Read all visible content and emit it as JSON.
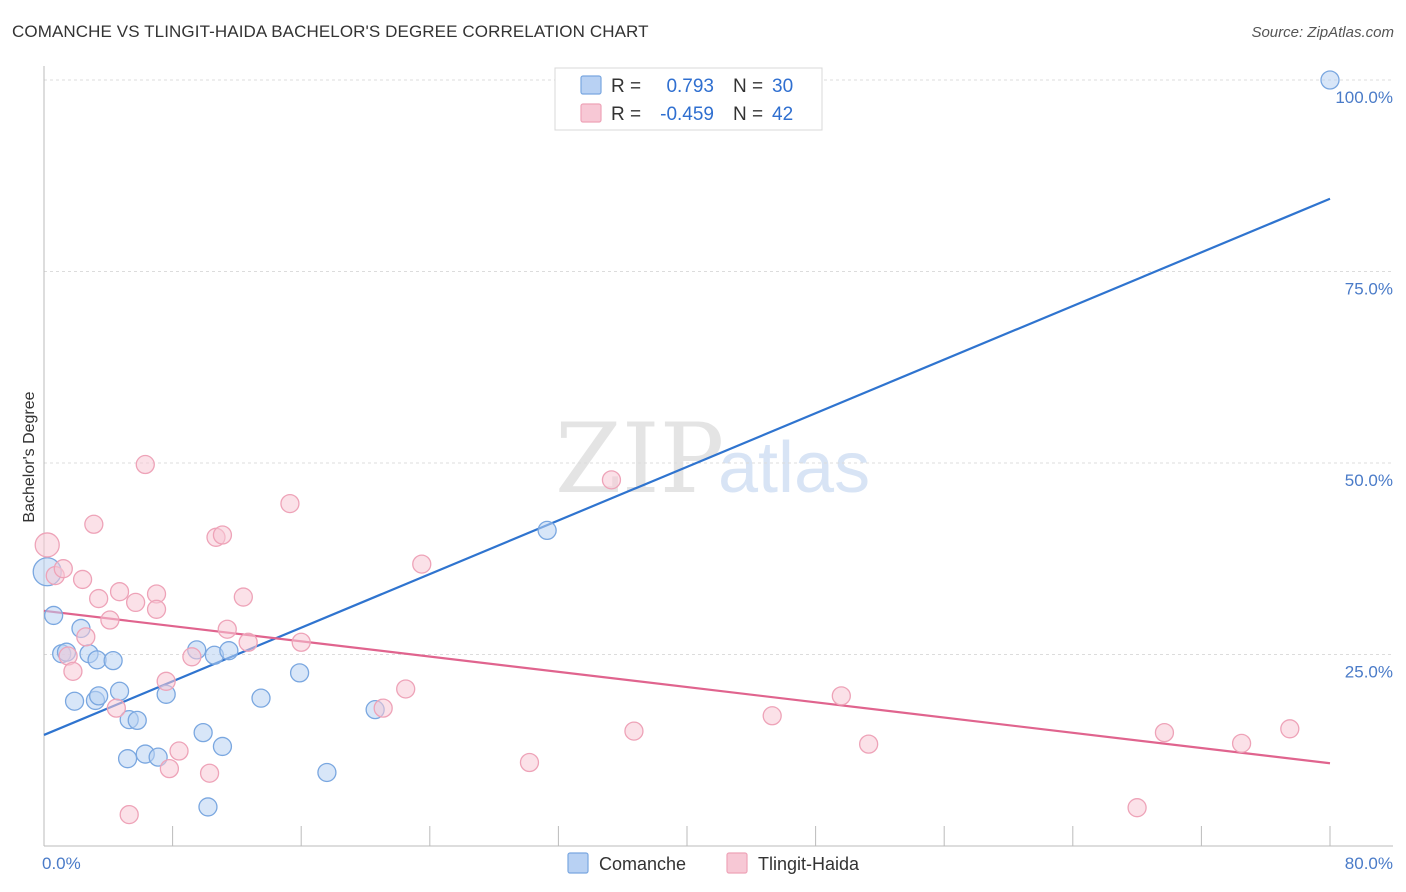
{
  "chart_data": {
    "type": "scatter",
    "title": "COMANCHE VS TLINGIT-HAIDA BACHELOR'S DEGREE CORRELATION CHART",
    "source": "Source: ZipAtlas.com",
    "ylabel": "Bachelor's Degree",
    "xlim": [
      0,
      80
    ],
    "ylim": [
      0,
      100
    ],
    "x_tick_labels": {
      "min": "0.0%",
      "max": "80.0%"
    },
    "y_ticks": [
      {
        "value": 25,
        "label": "25.0%"
      },
      {
        "value": 50,
        "label": "50.0%"
      },
      {
        "value": 75,
        "label": "75.0%"
      },
      {
        "value": 100,
        "label": "100.0%"
      }
    ],
    "watermark": {
      "zip": "ZIP",
      "atlas": "atlas"
    },
    "legend": {
      "r_label": "R =",
      "n_label": "N =",
      "rows": [
        {
          "r": "0.793",
          "n": "30"
        },
        {
          "r": "-0.459",
          "n": "42"
        }
      ]
    },
    "series": [
      {
        "name": "Comanche",
        "color": "#7aa7e0",
        "fill": "#b8d1f3",
        "line_color": "#2f74cf",
        "trend": {
          "x0": 0,
          "y0": 14.5,
          "x1": 80,
          "y1": 84.5
        },
        "points": [
          [
            0.2,
            35.8,
            14
          ],
          [
            0.6,
            30.1,
            9
          ],
          [
            1.1,
            25.1,
            9
          ],
          [
            1.4,
            25.3,
            9
          ],
          [
            2.3,
            28.4,
            9
          ],
          [
            2.8,
            25.1,
            9
          ],
          [
            3.3,
            24.3,
            9
          ],
          [
            4.3,
            24.2,
            9
          ],
          [
            1.9,
            18.9,
            9
          ],
          [
            3.2,
            19.0,
            9
          ],
          [
            3.4,
            19.6,
            9
          ],
          [
            4.7,
            20.2,
            9
          ],
          [
            5.3,
            16.5,
            9
          ],
          [
            5.8,
            16.4,
            9
          ],
          [
            7.6,
            19.8,
            9
          ],
          [
            9.5,
            25.6,
            9
          ],
          [
            10.6,
            24.9,
            9
          ],
          [
            11.5,
            25.5,
            9
          ],
          [
            13.5,
            19.3,
            9
          ],
          [
            15.9,
            22.6,
            9
          ],
          [
            6.3,
            12.0,
            9
          ],
          [
            7.1,
            11.6,
            9
          ],
          [
            5.2,
            11.4,
            9
          ],
          [
            9.9,
            14.8,
            9
          ],
          [
            11.1,
            13.0,
            9
          ],
          [
            17.6,
            9.6,
            9
          ],
          [
            10.2,
            5.1,
            9
          ],
          [
            20.6,
            17.8,
            9
          ],
          [
            31.3,
            41.2,
            9
          ],
          [
            80.0,
            100.0,
            9
          ]
        ]
      },
      {
        "name": "Tlingit-Haida",
        "color": "#eea3b8",
        "fill": "#f7c8d5",
        "line_color": "#e0648e",
        "trend": {
          "x0": 0,
          "y0": 30.7,
          "x1": 80,
          "y1": 10.8
        },
        "points": [
          [
            0.2,
            39.3,
            12
          ],
          [
            0.7,
            35.3,
            9
          ],
          [
            1.2,
            36.2,
            9
          ],
          [
            3.1,
            42.0,
            9
          ],
          [
            6.3,
            49.8,
            9
          ],
          [
            2.4,
            34.8,
            9
          ],
          [
            3.4,
            32.3,
            9
          ],
          [
            4.7,
            33.2,
            9
          ],
          [
            5.7,
            31.8,
            9
          ],
          [
            7.0,
            32.9,
            9
          ],
          [
            7.0,
            30.9,
            9
          ],
          [
            4.1,
            29.5,
            9
          ],
          [
            2.6,
            27.3,
            9
          ],
          [
            1.5,
            24.8,
            9
          ],
          [
            1.8,
            22.8,
            9
          ],
          [
            10.7,
            40.3,
            9
          ],
          [
            11.1,
            40.6,
            9
          ],
          [
            12.4,
            32.5,
            9
          ],
          [
            15.3,
            44.7,
            9
          ],
          [
            11.4,
            28.3,
            9
          ],
          [
            12.7,
            26.6,
            9
          ],
          [
            16.0,
            26.6,
            9
          ],
          [
            9.2,
            24.7,
            9
          ],
          [
            7.6,
            21.5,
            9
          ],
          [
            4.5,
            18.0,
            9
          ],
          [
            23.5,
            36.8,
            9
          ],
          [
            35.3,
            47.8,
            9
          ],
          [
            22.5,
            20.5,
            9
          ],
          [
            21.1,
            18.0,
            9
          ],
          [
            8.4,
            12.4,
            9
          ],
          [
            7.8,
            10.1,
            9
          ],
          [
            10.3,
            9.5,
            9
          ],
          [
            5.3,
            4.1,
            9
          ],
          [
            30.2,
            10.9,
            9
          ],
          [
            36.7,
            15.0,
            9
          ],
          [
            45.3,
            17.0,
            9
          ],
          [
            49.6,
            19.6,
            9
          ],
          [
            51.3,
            13.3,
            9
          ],
          [
            69.7,
            14.8,
            9
          ],
          [
            74.5,
            13.4,
            9
          ],
          [
            77.5,
            15.3,
            9
          ],
          [
            68.0,
            5.0,
            9
          ]
        ]
      }
    ]
  }
}
